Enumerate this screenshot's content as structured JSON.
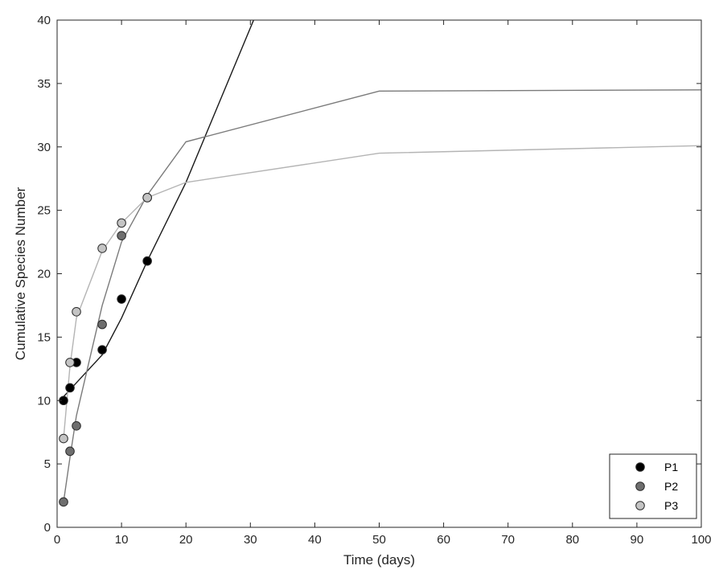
{
  "chart_data": {
    "type": "scatter",
    "title": "",
    "xlabel": "Time (days)",
    "ylabel": "Cumulative Species Number",
    "xlim": [
      0,
      100
    ],
    "ylim": [
      0,
      40
    ],
    "xticks": [
      0,
      10,
      20,
      30,
      40,
      50,
      60,
      70,
      80,
      90,
      100
    ],
    "yticks": [
      0,
      5,
      10,
      15,
      20,
      25,
      30,
      35,
      40
    ],
    "grid": false,
    "legend_position": "bottom-right",
    "series": [
      {
        "name": "P1",
        "color": "#000000",
        "line_color": "#1a1a1a",
        "points": [
          [
            1,
            10
          ],
          [
            2,
            11
          ],
          [
            3,
            13
          ],
          [
            7,
            14
          ],
          [
            10,
            18
          ],
          [
            14,
            21
          ]
        ],
        "fit": [
          [
            1,
            10.3
          ],
          [
            3,
            11.4
          ],
          [
            7,
            13.6
          ],
          [
            10,
            16.5
          ],
          [
            14,
            21.0
          ],
          [
            20,
            27.2
          ],
          [
            31,
            40.6
          ]
        ]
      },
      {
        "name": "P2",
        "color": "#6e6e6e",
        "line_color": "#7a7a7a",
        "points": [
          [
            1,
            2
          ],
          [
            2,
            6
          ],
          [
            3,
            8
          ],
          [
            7,
            16
          ],
          [
            10,
            23
          ],
          [
            14,
            26
          ]
        ],
        "fit": [
          [
            1,
            2
          ],
          [
            2,
            5.5
          ],
          [
            3,
            8.8
          ],
          [
            7,
            17.5
          ],
          [
            10,
            22.5
          ],
          [
            14,
            26.2
          ],
          [
            20,
            30.4
          ],
          [
            50,
            34.4
          ],
          [
            100,
            34.5
          ]
        ]
      },
      {
        "name": "P3",
        "color": "#c4c4c4",
        "line_color": "#b4b4b4",
        "points": [
          [
            1,
            7
          ],
          [
            2,
            13
          ],
          [
            3,
            17
          ],
          [
            7,
            22
          ],
          [
            10,
            24
          ],
          [
            14,
            26
          ]
        ],
        "fit": [
          [
            1,
            7
          ],
          [
            2,
            12.7
          ],
          [
            3,
            16.5
          ],
          [
            7,
            21.8
          ],
          [
            10,
            24.0
          ],
          [
            14,
            26.0
          ],
          [
            20,
            27.2
          ],
          [
            50,
            29.5
          ],
          [
            100,
            30.1
          ]
        ]
      }
    ]
  }
}
